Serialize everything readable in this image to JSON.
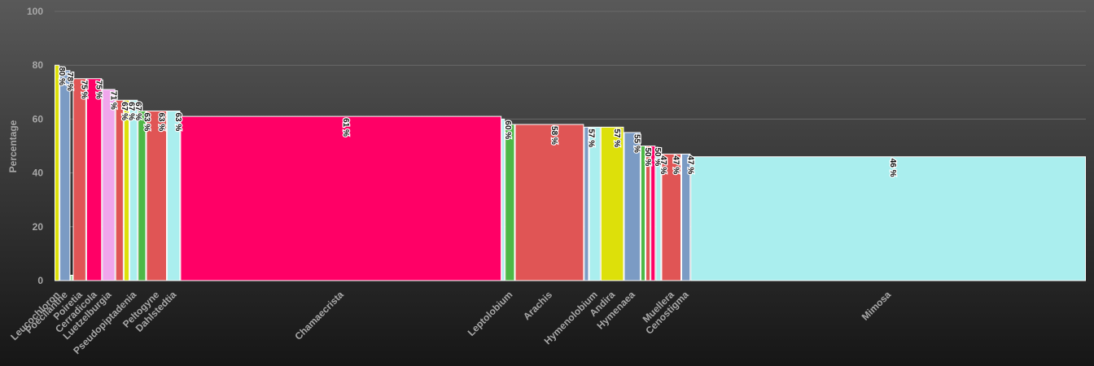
{
  "chart_data": {
    "type": "bar",
    "variable_width": true,
    "ylabel": "Percentage",
    "ylim": [
      0,
      100
    ],
    "yticks": [
      0,
      20,
      40,
      60,
      80,
      100
    ],
    "grid": true,
    "categories": [
      "Leucochloron",
      "Poecilanthe",
      "Poiretia",
      "Cerradicola",
      "Luetzelburgia",
      "Pseudopiptadenia",
      "Peltogyne",
      "Dahlstedtia",
      "Chamaecrista",
      "Leptolobium",
      "Arachis",
      "Hymenolobium",
      "Andira",
      "Hymenaea",
      "Muellera",
      "Cenostigma",
      "Mimosa"
    ],
    "bars": [
      {
        "value": 80,
        "label": "80 %",
        "color": "#dde00a",
        "weight": 6,
        "category_index": 0
      },
      {
        "value": 78,
        "label": "78 %",
        "color": "#7b9bc4",
        "weight": 13,
        "category_index": 1
      },
      {
        "value": 2,
        "label": "",
        "color": "#4db846",
        "weight": 3,
        "category_index": -1
      },
      {
        "value": 75,
        "label": "75 %",
        "color": "#e05555",
        "weight": 16,
        "category_index": 2
      },
      {
        "value": 75,
        "label": "75 %",
        "color": "#ff0066",
        "weight": 19,
        "category_index": 3
      },
      {
        "value": 71,
        "label": "71 %",
        "color": "#f0a6ec",
        "weight": 16,
        "category_index": 4
      },
      {
        "value": 67,
        "label": "67 %",
        "color": "#e05555",
        "weight": 10,
        "category_index": -1
      },
      {
        "value": 67,
        "label": "67 %",
        "color": "#dde00a",
        "weight": 7,
        "category_index": -1
      },
      {
        "value": 67,
        "label": "67 %",
        "color": "#aaeeee",
        "weight": 10,
        "category_index": 5
      },
      {
        "value": 63,
        "label": "63 %",
        "color": "#4db846",
        "weight": 10,
        "category_index": -1
      },
      {
        "value": 63,
        "label": "63 %",
        "color": "#e05555",
        "weight": 25,
        "category_index": 6
      },
      {
        "value": 63,
        "label": "63 %",
        "color": "#aaeeee",
        "weight": 16,
        "category_index": 7
      },
      {
        "value": 61,
        "label": "61 %",
        "color": "#ff0066",
        "weight": 386,
        "category_index": 8
      },
      {
        "value": 60,
        "label": "60 %",
        "color": "#aaeeee",
        "weight": 4,
        "category_index": -1
      },
      {
        "value": 58,
        "label": "",
        "color": "#4db846",
        "weight": 12,
        "category_index": 9
      },
      {
        "value": 58,
        "label": "58 %",
        "color": "#e05555",
        "weight": 83,
        "category_index": 10
      },
      {
        "value": 57,
        "label": "57 %",
        "color": "#7b9bc4",
        "weight": 6,
        "category_index": -1
      },
      {
        "value": 57,
        "label": "",
        "color": "#aaeeee",
        "weight": 14,
        "category_index": 11
      },
      {
        "value": 57,
        "label": "57 %",
        "color": "#dde00a",
        "weight": 28,
        "category_index": 12
      },
      {
        "value": 55,
        "label": "55 %",
        "color": "#7b9bc4",
        "weight": 20,
        "category_index": 13
      },
      {
        "value": 50,
        "label": "50 %",
        "color": "#4db846",
        "weight": 6,
        "category_index": -1
      },
      {
        "value": 50,
        "label": "",
        "color": "#e05555",
        "weight": 6,
        "category_index": -1
      },
      {
        "value": 50,
        "label": "50 %",
        "color": "#ff0066",
        "weight": 6,
        "category_index": -1
      },
      {
        "value": 47,
        "label": "47 %",
        "color": "#aaeeee",
        "weight": 7,
        "category_index": -1
      },
      {
        "value": 47,
        "label": "47 %",
        "color": "#e05555",
        "weight": 24,
        "category_index": 14
      },
      {
        "value": 47,
        "label": "47 %",
        "color": "#7b9bc4",
        "weight": 11,
        "category_index": 15
      },
      {
        "value": 46,
        "label": "46 %",
        "color": "#aaeeee",
        "weight": 475,
        "category_index": 16
      }
    ]
  }
}
